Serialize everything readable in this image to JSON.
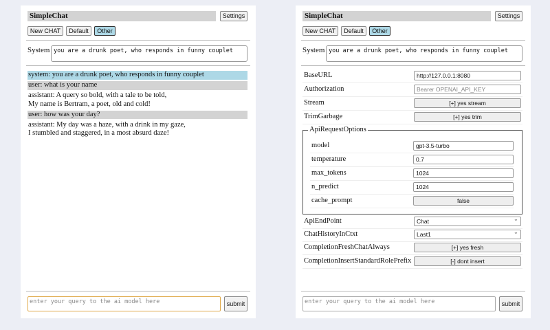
{
  "app_title": "SimpleChat",
  "settings_label": "Settings",
  "chat_buttons": [
    "New CHAT",
    "Default",
    "Other"
  ],
  "system_label": "System",
  "system_prompt": "you are a drunk poet, who responds in funny couplet",
  "messages": [
    {
      "role": "system",
      "lines": [
        "system: you are a drunk poet, who responds in funny couplet"
      ]
    },
    {
      "role": "user",
      "lines": [
        "user: what is your name"
      ]
    },
    {
      "role": "assistant",
      "lines": [
        "assistant: A query so bold, with a tale to be told,",
        "My name is Bertram, a poet, old and cold!"
      ]
    },
    {
      "role": "user",
      "lines": [
        "user: how was your day?"
      ]
    },
    {
      "role": "assistant",
      "lines": [
        "assistant: My day was a haze, with a drink in my gaze,",
        "I stumbled and staggered, in a most absurd daze!"
      ]
    }
  ],
  "query_placeholder": "enter your query to the ai model here",
  "submit_label": "submit",
  "settings": {
    "base_url": {
      "label": "BaseURL",
      "value": "http://127.0.0.1:8080"
    },
    "authorization": {
      "label": "Authorization",
      "placeholder": "Bearer OPENAI_API_KEY"
    },
    "stream": {
      "label": "Stream",
      "value": "[+] yes stream"
    },
    "trim_garbage": {
      "label": "TrimGarbage",
      "value": "[+] yes trim"
    },
    "api_request_options": {
      "legend": "ApiRequestOptions",
      "model": {
        "label": "model",
        "value": "gpt-3.5-turbo"
      },
      "temperature": {
        "label": "temperature",
        "value": "0.7"
      },
      "max_tokens": {
        "label": "max_tokens",
        "value": "1024"
      },
      "n_predict": {
        "label": "n_predict",
        "value": "1024"
      },
      "cache_prompt": {
        "label": "cache_prompt",
        "value": "false"
      }
    },
    "api_endpoint": {
      "label": "ApiEndPoint",
      "value": "Chat"
    },
    "chat_history": {
      "label": "ChatHistoryInCtxt",
      "value": "Last1"
    },
    "fresh_chat": {
      "label": "CompletionFreshChatAlways",
      "value": "[+] yes fresh"
    },
    "insert_prefix": {
      "label": "CompletionInsertStandardRolePrefix",
      "value": "[-] dont insert"
    }
  }
}
